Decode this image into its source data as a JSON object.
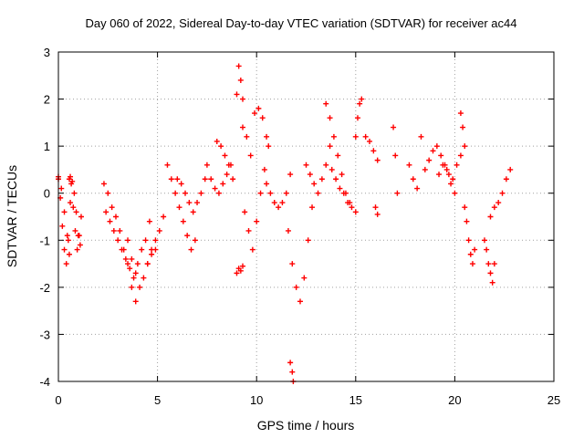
{
  "chart_data": {
    "type": "scatter",
    "title": "Day 060 of 2022, Sidereal Day-to-day VTEC variation (SDTVAR) for receiver ac44",
    "xlabel": "GPS time / hours",
    "ylabel": "SDTVAR / TECUs",
    "xlim": [
      0,
      25
    ],
    "ylim": [
      -4,
      3
    ],
    "xticks": [
      0,
      5,
      10,
      15,
      20,
      25
    ],
    "yticks": [
      -4,
      -3,
      -2,
      -1,
      0,
      1,
      2,
      3
    ],
    "grid": true,
    "marker": "+",
    "series": [
      {
        "name": "SDTVAR",
        "color": "#ff0000",
        "segments": [
          {
            "x": [
              0.0,
              0.1,
              0.2,
              0.3,
              0.4,
              0.5,
              0.6
            ],
            "y": [
              0.35,
              -0.1,
              -0.7,
              -1.2,
              -1.5,
              -1.0,
              -0.2
            ]
          },
          {
            "x": [
              0.0,
              0.15,
              0.3,
              0.45,
              0.55
            ],
            "y": [
              0.3,
              0.1,
              -0.4,
              -0.9,
              -1.3
            ]
          },
          {
            "x": [
              0.55,
              0.65,
              0.75,
              0.85,
              0.95,
              1.05,
              1.15
            ],
            "y": [
              0.3,
              0.2,
              -0.3,
              -0.8,
              -1.2,
              -0.9,
              -0.5
            ]
          },
          {
            "x": [
              0.6,
              0.7,
              0.8,
              0.9,
              1.0,
              1.1
            ],
            "y": [
              0.35,
              0.25,
              0.0,
              -0.4,
              -0.9,
              -1.1
            ]
          },
          {
            "x": [
              2.3,
              2.5,
              2.7,
              2.9,
              3.1,
              3.3,
              3.5,
              3.7,
              3.9
            ],
            "y": [
              0.2,
              0.0,
              -0.3,
              -0.5,
              -0.8,
              -1.2,
              -1.5,
              -2.0,
              -2.3
            ]
          },
          {
            "x": [
              2.4,
              2.6,
              2.8,
              3.0,
              3.2,
              3.4
            ],
            "y": [
              -0.4,
              -0.6,
              -0.8,
              -1.0,
              -1.2,
              -1.4
            ]
          },
          {
            "x": [
              3.5,
              3.7,
              3.9,
              4.1,
              4.3,
              4.5,
              4.7,
              4.9
            ],
            "y": [
              -1.0,
              -1.4,
              -1.7,
              -2.0,
              -1.8,
              -1.5,
              -1.3,
              -1.2
            ]
          },
          {
            "x": [
              3.6,
              3.8,
              4.0,
              4.2,
              4.4,
              4.6
            ],
            "y": [
              -1.6,
              -1.8,
              -1.5,
              -1.2,
              -1.0,
              -0.6
            ]
          },
          {
            "x": [
              4.5,
              4.7,
              4.9,
              5.1,
              5.3
            ],
            "y": [
              -1.5,
              -1.2,
              -1.0,
              -0.8,
              -0.5
            ]
          },
          {
            "x": [
              5.5,
              5.7,
              5.9,
              6.1,
              6.3,
              6.5,
              6.7,
              6.9
            ],
            "y": [
              0.6,
              0.3,
              0.0,
              -0.3,
              -0.6,
              -0.9,
              -1.2,
              -1.0
            ]
          },
          {
            "x": [
              6.0,
              6.2,
              6.4,
              6.6,
              6.8,
              7.0,
              7.2,
              7.4
            ],
            "y": [
              0.3,
              0.2,
              0.0,
              -0.2,
              -0.4,
              -0.2,
              0.0,
              0.3
            ]
          },
          {
            "x": [
              7.5,
              7.7,
              7.9,
              8.1,
              8.3,
              8.5,
              8.7
            ],
            "y": [
              0.6,
              0.3,
              0.1,
              0.0,
              0.2,
              0.4,
              0.6
            ]
          },
          {
            "x": [
              8.0,
              8.2,
              8.4,
              8.6,
              8.8,
              9.0,
              9.1,
              9.2,
              9.3
            ],
            "y": [
              1.1,
              1.0,
              0.8,
              0.6,
              0.3,
              2.1,
              2.7,
              2.4,
              2.0
            ]
          },
          {
            "x": [
              9.0,
              9.1,
              9.2,
              9.3
            ],
            "y": [
              -1.7,
              -1.6,
              -1.65,
              -1.55
            ]
          },
          {
            "x": [
              9.3,
              9.5,
              9.7,
              9.9,
              10.1,
              10.3,
              10.5
            ],
            "y": [
              1.4,
              1.2,
              0.8,
              1.7,
              1.8,
              1.6,
              1.2
            ]
          },
          {
            "x": [
              9.4,
              9.6,
              9.8,
              10.0,
              10.2,
              10.4,
              10.6
            ],
            "y": [
              -0.4,
              -0.8,
              -1.2,
              -0.6,
              0.0,
              0.5,
              1.0
            ]
          },
          {
            "x": [
              10.5,
              10.7,
              10.9,
              11.1,
              11.3,
              11.5,
              11.7
            ],
            "y": [
              0.2,
              0.0,
              -0.2,
              -0.3,
              -0.2,
              0.0,
              0.4
            ]
          },
          {
            "x": [
              11.6,
              11.8,
              12.0,
              12.2,
              12.4,
              12.6,
              12.8
            ],
            "y": [
              -0.8,
              -1.5,
              -2.0,
              -2.3,
              -1.8,
              -1.0,
              -0.3
            ]
          },
          {
            "x": [
              11.7,
              11.8,
              11.85
            ],
            "y": [
              -3.6,
              -3.8,
              -4.0
            ]
          },
          {
            "x": [
              12.5,
              12.7,
              12.9,
              13.1,
              13.3,
              13.5,
              13.7
            ],
            "y": [
              0.6,
              0.4,
              0.2,
              0.0,
              0.3,
              0.6,
              1.0
            ]
          },
          {
            "x": [
              13.5,
              13.7,
              13.9,
              14.1,
              14.3,
              14.5,
              14.7
            ],
            "y": [
              1.9,
              1.6,
              1.2,
              0.8,
              0.4,
              0.0,
              -0.2
            ]
          },
          {
            "x": [
              13.8,
              14.0,
              14.2,
              14.4,
              14.6,
              14.8,
              15.0
            ],
            "y": [
              0.5,
              0.3,
              0.1,
              0.0,
              -0.2,
              -0.3,
              -0.4
            ]
          },
          {
            "x": [
              15.0,
              15.1,
              15.2,
              15.3
            ],
            "y": [
              1.2,
              1.6,
              1.9,
              2.0
            ]
          },
          {
            "x": [
              15.5,
              15.7,
              15.9,
              16.1
            ],
            "y": [
              1.2,
              1.1,
              0.9,
              0.7
            ]
          },
          {
            "x": [
              16.0,
              16.1
            ],
            "y": [
              -0.3,
              -0.45
            ]
          },
          {
            "x": [
              16.9,
              17.0,
              17.1
            ],
            "y": [
              1.4,
              0.8,
              0.0
            ]
          },
          {
            "x": [
              17.7,
              17.9,
              18.1,
              18.3
            ],
            "y": [
              0.6,
              0.3,
              0.1,
              1.2
            ]
          },
          {
            "x": [
              18.5,
              18.7,
              18.9,
              19.1,
              19.3,
              19.5,
              19.7,
              19.9,
              20.1,
              20.3
            ],
            "y": [
              0.5,
              0.7,
              0.9,
              1.0,
              0.8,
              0.6,
              0.4,
              0.3,
              0.6,
              0.8
            ]
          },
          {
            "x": [
              19.2,
              19.4,
              19.6,
              19.8,
              20.0
            ],
            "y": [
              0.4,
              0.6,
              0.5,
              0.2,
              0.0
            ]
          },
          {
            "x": [
              20.3,
              20.4,
              20.5
            ],
            "y": [
              1.7,
              1.4,
              1.0
            ]
          },
          {
            "x": [
              20.5,
              20.6,
              20.7,
              20.8,
              20.9,
              21.0
            ],
            "y": [
              -0.3,
              -0.6,
              -1.0,
              -1.3,
              -1.5,
              -1.2
            ]
          },
          {
            "x": [
              21.5,
              21.6,
              21.7,
              21.8,
              21.9,
              22.0
            ],
            "y": [
              -1.0,
              -1.2,
              -1.5,
              -1.7,
              -1.9,
              -1.5
            ]
          },
          {
            "x": [
              21.8,
              22.0,
              22.2,
              22.4,
              22.6,
              22.8
            ],
            "y": [
              -0.5,
              -0.3,
              -0.2,
              0.0,
              0.3,
              0.5
            ]
          }
        ]
      }
    ]
  }
}
